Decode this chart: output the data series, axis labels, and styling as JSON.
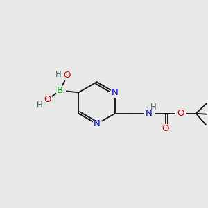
{
  "background_color": "#e8eaea",
  "bond_color": "#1a1a1a",
  "atom_colors": {
    "B": "#00aa00",
    "N": "#0000ee",
    "O": "#ee0000",
    "H": "#507070",
    "C": "#1a1a1a"
  },
  "font_size": 9.5,
  "font_size_h": 8.5,
  "lw": 1.4
}
